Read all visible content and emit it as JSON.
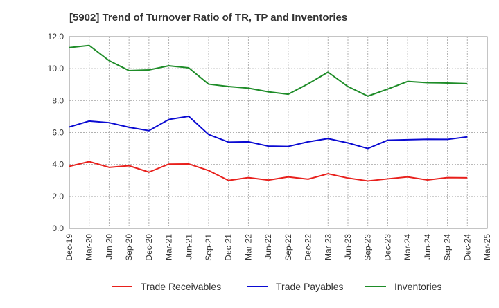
{
  "chart_data": {
    "type": "line",
    "title": "[5902]  Trend of Turnover Ratio of TR, TP and Inventories",
    "xlabel": "",
    "ylabel": "",
    "ylim": [
      0,
      12
    ],
    "yticks": [
      "0.0",
      "2.0",
      "4.0",
      "6.0",
      "8.0",
      "10.0",
      "12.0"
    ],
    "grid": true,
    "legend_position": "bottom",
    "x_tick_labels": [
      "Dec-19",
      "Mar-20",
      "Jun-20",
      "Sep-20",
      "Dec-20",
      "Mar-21",
      "Jun-21",
      "Sep-21",
      "Dec-21",
      "Mar-22",
      "Jun-22",
      "Sep-22",
      "Dec-22",
      "Mar-23",
      "Jun-23",
      "Sep-23",
      "Dec-23",
      "Mar-24",
      "Jun-24",
      "Sep-24",
      "Dec-24",
      "Mar-25"
    ],
    "x": [
      "Dec-19",
      "Mar-20",
      "Jun-20",
      "Sep-20",
      "Dec-20",
      "Mar-21",
      "Jun-21",
      "Sep-21",
      "Dec-21",
      "Mar-22",
      "Jun-22",
      "Sep-22",
      "Dec-22",
      "Mar-23",
      "Jun-23",
      "Sep-23",
      "Dec-23",
      "Mar-24",
      "Jun-24",
      "Sep-24",
      "Dec-24"
    ],
    "series": [
      {
        "name": "Trade Receivables",
        "color": "#e8201c",
        "values": [
          3.88,
          4.18,
          3.82,
          3.92,
          3.52,
          4.02,
          4.03,
          3.62,
          3.0,
          3.18,
          3.02,
          3.22,
          3.08,
          3.42,
          3.15,
          2.97,
          3.1,
          3.22,
          3.03,
          3.18,
          3.17
        ]
      },
      {
        "name": "Trade Payables",
        "color": "#0a0ad2",
        "values": [
          6.35,
          6.72,
          6.62,
          6.33,
          6.12,
          6.82,
          7.02,
          5.88,
          5.4,
          5.42,
          5.15,
          5.13,
          5.42,
          5.62,
          5.35,
          5.0,
          5.52,
          5.55,
          5.58,
          5.57,
          5.73
        ]
      },
      {
        "name": "Inventories",
        "color": "#1e8c28",
        "values": [
          11.32,
          11.45,
          10.5,
          9.88,
          9.92,
          10.18,
          10.05,
          9.03,
          8.88,
          8.78,
          8.55,
          8.4,
          9.05,
          9.78,
          8.88,
          8.28,
          8.72,
          9.2,
          9.12,
          9.1,
          9.06
        ]
      }
    ]
  }
}
